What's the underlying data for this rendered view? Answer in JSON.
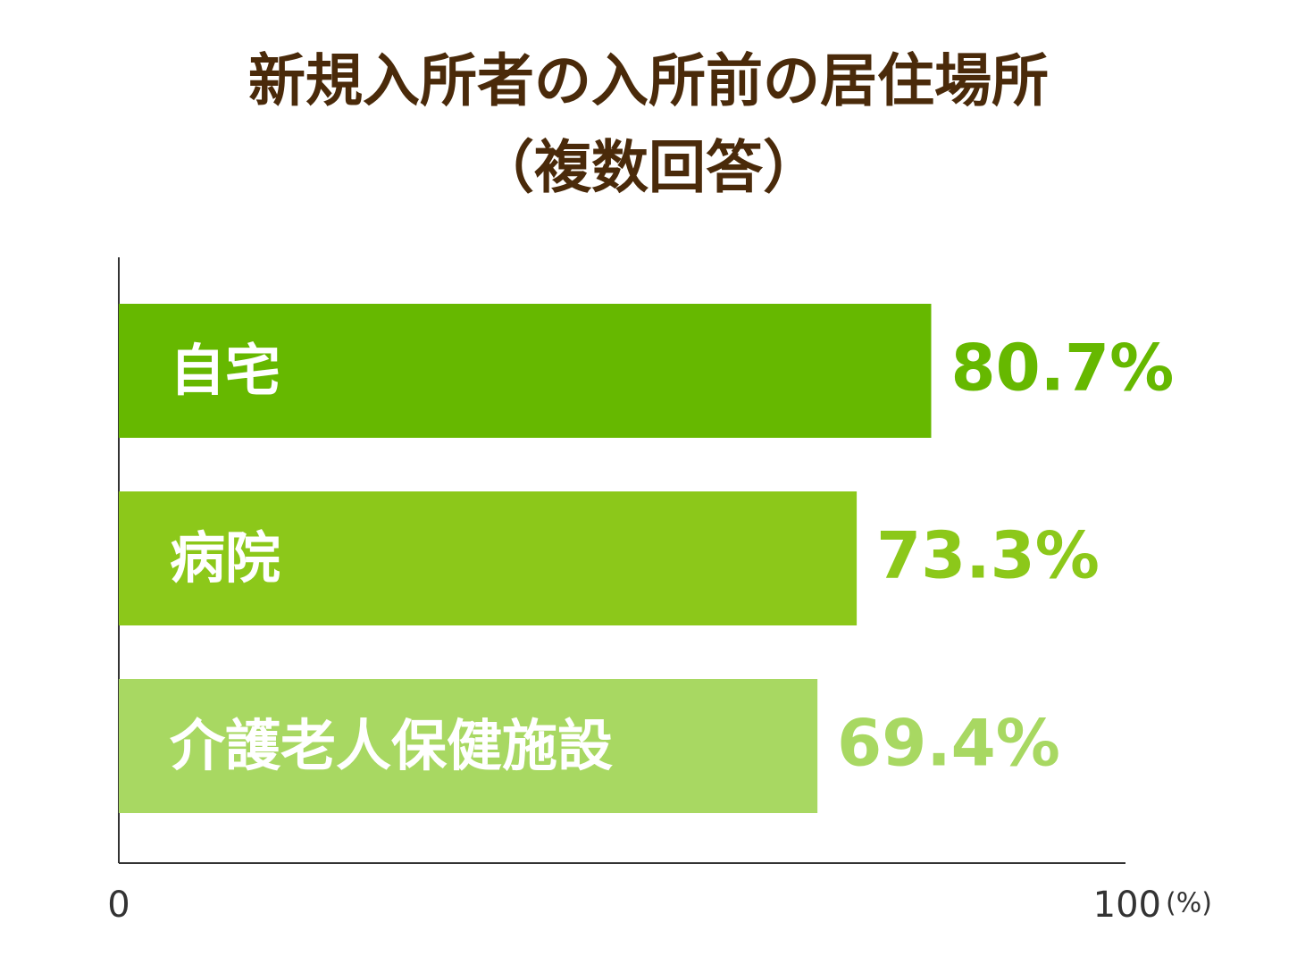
{
  "chart_data": {
    "type": "hbar",
    "title": "新規入所者の入所前の居住場所",
    "subtitle": "（複数回答）",
    "categories": [
      "自宅",
      "病院",
      "介護老人保健施設"
    ],
    "values": [
      80.7,
      73.3,
      69.4
    ],
    "value_labels": [
      "80.7%",
      "73.3%",
      "69.4%"
    ],
    "colors": [
      "#66b800",
      "#8cc81a",
      "#a8d862"
    ],
    "xlim": [
      0,
      100
    ],
    "xticks": [
      0,
      100
    ],
    "x_label": "(%)"
  }
}
